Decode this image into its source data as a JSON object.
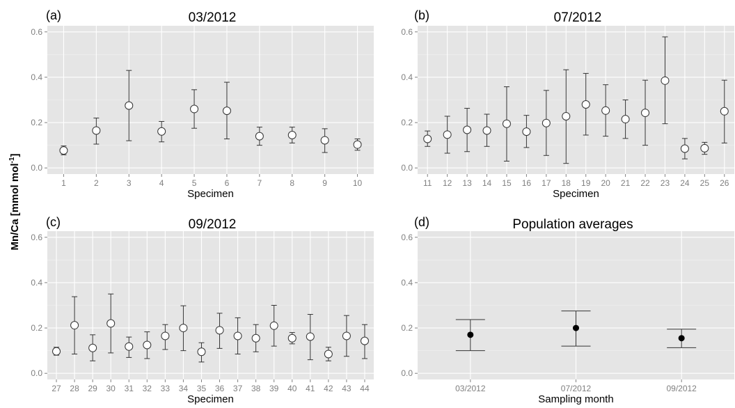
{
  "ylabel": "Mn/Ca [mmol mol",
  "ylabel_sup": "-1",
  "ylabel_end": "]",
  "chart_data": [
    {
      "type": "scatter",
      "panel": "(a)",
      "title": "03/2012",
      "xlabel": "Specimen",
      "ylim": [
        0,
        0.6
      ],
      "yticks": [
        "0.0",
        "0.2",
        "0.4",
        "0.6"
      ],
      "grid": true,
      "marker": "open-circle",
      "categories": [
        "1",
        "2",
        "3",
        "4",
        "5",
        "6",
        "7",
        "8",
        "9",
        "10"
      ],
      "values": [
        0.077,
        0.165,
        0.275,
        0.161,
        0.26,
        0.252,
        0.14,
        0.145,
        0.122,
        0.103
      ],
      "err_low": [
        0.058,
        0.105,
        0.12,
        0.115,
        0.175,
        0.128,
        0.1,
        0.11,
        0.068,
        0.078
      ],
      "err_high": [
        0.097,
        0.22,
        0.43,
        0.205,
        0.345,
        0.378,
        0.18,
        0.18,
        0.173,
        0.128
      ]
    },
    {
      "type": "scatter",
      "panel": "(b)",
      "title": "07/2012",
      "xlabel": "Specimen",
      "ylim": [
        0,
        0.6
      ],
      "yticks": [
        "0.0",
        "0.2",
        "0.4",
        "0.6"
      ],
      "grid": true,
      "marker": "open-circle",
      "categories": [
        "11",
        "12",
        "13",
        "14",
        "15",
        "16",
        "17",
        "18",
        "19",
        "20",
        "21",
        "22",
        "23",
        "24",
        "25",
        "26"
      ],
      "values": [
        0.128,
        0.147,
        0.168,
        0.165,
        0.195,
        0.16,
        0.198,
        0.228,
        0.28,
        0.253,
        0.215,
        0.243,
        0.385,
        0.085,
        0.087,
        0.25
      ],
      "err_low": [
        0.095,
        0.065,
        0.072,
        0.095,
        0.03,
        0.09,
        0.055,
        0.02,
        0.145,
        0.14,
        0.13,
        0.1,
        0.195,
        0.04,
        0.06,
        0.11
      ],
      "err_high": [
        0.163,
        0.228,
        0.263,
        0.237,
        0.358,
        0.232,
        0.342,
        0.433,
        0.417,
        0.367,
        0.3,
        0.387,
        0.578,
        0.13,
        0.113,
        0.387
      ]
    },
    {
      "type": "scatter",
      "panel": "(c)",
      "title": "09/2012",
      "xlabel": "Specimen",
      "ylim": [
        0,
        0.6
      ],
      "yticks": [
        "0.0",
        "0.2",
        "0.4",
        "0.6"
      ],
      "grid": true,
      "marker": "open-circle",
      "categories": [
        "27",
        "28",
        "29",
        "30",
        "31",
        "32",
        "33",
        "34",
        "35",
        "36",
        "37",
        "38",
        "39",
        "40",
        "41",
        "42",
        "43",
        "44"
      ],
      "values": [
        0.097,
        0.212,
        0.112,
        0.22,
        0.118,
        0.125,
        0.165,
        0.2,
        0.095,
        0.19,
        0.165,
        0.155,
        0.21,
        0.155,
        0.162,
        0.085,
        0.165,
        0.143
      ],
      "err_low": [
        0.08,
        0.085,
        0.055,
        0.09,
        0.07,
        0.065,
        0.105,
        0.1,
        0.05,
        0.11,
        0.085,
        0.095,
        0.12,
        0.13,
        0.06,
        0.055,
        0.075,
        0.065
      ],
      "err_high": [
        0.115,
        0.338,
        0.17,
        0.35,
        0.16,
        0.183,
        0.215,
        0.298,
        0.135,
        0.265,
        0.245,
        0.215,
        0.3,
        0.18,
        0.26,
        0.115,
        0.255,
        0.215
      ]
    },
    {
      "type": "scatter",
      "panel": "(d)",
      "title": "Population averages",
      "xlabel": "Sampling month",
      "ylim": [
        0,
        0.6
      ],
      "yticks": [
        "0.0",
        "0.2",
        "0.4",
        "0.6"
      ],
      "grid": true,
      "marker": "filled-circle",
      "categories": [
        "03/2012",
        "07/2012",
        "09/2012"
      ],
      "values": [
        0.17,
        0.2,
        0.155
      ],
      "err_low": [
        0.1,
        0.12,
        0.113
      ],
      "err_high": [
        0.237,
        0.275,
        0.195
      ]
    }
  ]
}
